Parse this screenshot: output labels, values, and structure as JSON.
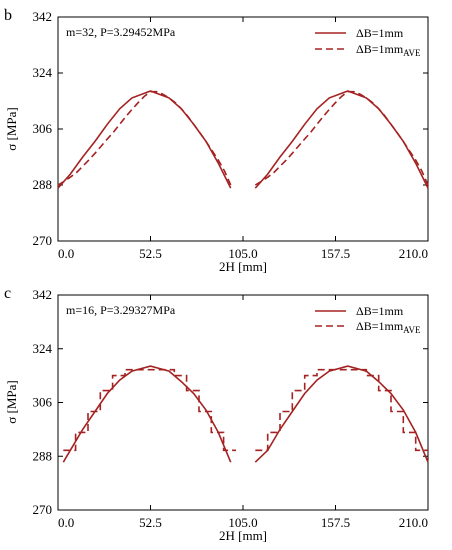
{
  "chart_data": [
    {
      "panel": "b",
      "type": "line",
      "annotation": "m=32, P=3.29452MPa",
      "xlabel": "2H [mm]",
      "ylabel": "σ [MPa]",
      "xlim": [
        0,
        210
      ],
      "ylim": [
        270,
        342
      ],
      "xticks": [
        "0.0",
        "52.5",
        "105.0",
        "157.5",
        "210.0"
      ],
      "yticks": [
        "270",
        "288",
        "306",
        "324",
        "342"
      ],
      "legend_position": "top-right",
      "color": "#a52222",
      "series": [
        {
          "name": "ΔB=1mm",
          "style": "solid",
          "segments": [
            [
              [
                0,
                287
              ],
              [
                7,
                291.5
              ],
              [
                14,
                297
              ],
              [
                21,
                302
              ],
              [
                28,
                307.5
              ],
              [
                35,
                312.5
              ],
              [
                42,
                316
              ],
              [
                52.5,
                318.2
              ],
              [
                63,
                316
              ],
              [
                70,
                312.5
              ],
              [
                77,
                307.5
              ],
              [
                84,
                302
              ],
              [
                91,
                295
              ],
              [
                98,
                287
              ]
            ],
            [
              [
                112,
                287
              ],
              [
                119,
                291.5
              ],
              [
                126,
                297
              ],
              [
                133,
                302
              ],
              [
                140,
                307.5
              ],
              [
                147,
                312.5
              ],
              [
                154,
                316
              ],
              [
                164.5,
                318.2
              ],
              [
                175,
                316
              ],
              [
                182,
                312.5
              ],
              [
                189,
                307.5
              ],
              [
                196,
                302
              ],
              [
                203,
                295
              ],
              [
                210,
                287
              ]
            ]
          ]
        },
        {
          "name": "ΔB=1mm",
          "name_subscript": "AVE",
          "style": "dashed",
          "step": 3.5,
          "segments": [
            [
              [
                0,
                288
              ],
              [
                3.5,
                289.2
              ],
              [
                7,
                290.5
              ],
              [
                10.5,
                292
              ],
              [
                14,
                294
              ],
              [
                17.5,
                296
              ],
              [
                21,
                298.2
              ],
              [
                24.5,
                300.5
              ],
              [
                28,
                302.8
              ],
              [
                31.5,
                305
              ],
              [
                35,
                307.5
              ],
              [
                38.5,
                310
              ],
              [
                42,
                312.3
              ],
              [
                45.5,
                314.5
              ],
              [
                49,
                316.5
              ],
              [
                52.5,
                318
              ],
              [
                56,
                318
              ],
              [
                59.5,
                317.2
              ],
              [
                63,
                316
              ],
              [
                66.5,
                314.5
              ],
              [
                70,
                312.5
              ],
              [
                73.5,
                310.2
              ],
              [
                77,
                307.5
              ],
              [
                80.5,
                304.8
              ],
              [
                84,
                302
              ],
              [
                87.5,
                299
              ],
              [
                91,
                296
              ],
              [
                94.5,
                292.5
              ],
              [
                98,
                288
              ]
            ],
            [
              [
                112,
                288
              ],
              [
                115.5,
                289.2
              ],
              [
                119,
                290.5
              ],
              [
                122.5,
                292
              ],
              [
                126,
                294
              ],
              [
                129.5,
                296
              ],
              [
                133,
                298.2
              ],
              [
                136.5,
                300.5
              ],
              [
                140,
                302.8
              ],
              [
                143.5,
                305
              ],
              [
                147,
                307.5
              ],
              [
                150.5,
                310
              ],
              [
                154,
                312.3
              ],
              [
                157.5,
                314.5
              ],
              [
                161,
                316.5
              ],
              [
                164.5,
                318
              ],
              [
                168,
                318
              ],
              [
                171.5,
                317.2
              ],
              [
                175,
                316
              ],
              [
                178.5,
                314.5
              ],
              [
                182,
                312.5
              ],
              [
                185.5,
                310.2
              ],
              [
                189,
                307.5
              ],
              [
                192.5,
                304.8
              ],
              [
                196,
                302
              ],
              [
                199.5,
                299
              ],
              [
                203,
                296
              ],
              [
                206.5,
                292.5
              ],
              [
                210,
                288
              ]
            ]
          ]
        }
      ]
    },
    {
      "panel": "c",
      "type": "line",
      "annotation": "m=16, P=3.29327MPa",
      "xlabel": "2H [mm]",
      "ylabel": "σ [MPa]",
      "xlim": [
        0,
        210
      ],
      "ylim": [
        270,
        342
      ],
      "xticks": [
        "0.0",
        "52.5",
        "105.0",
        "157.5",
        "210.0"
      ],
      "yticks": [
        "270",
        "288",
        "306",
        "324",
        "342"
      ],
      "legend_position": "top-right",
      "color": "#a52222",
      "series": [
        {
          "name": "ΔB=1mm",
          "style": "solid",
          "segments": [
            [
              [
                3,
                286
              ],
              [
                7,
                290
              ],
              [
                14,
                297
              ],
              [
                21,
                303
              ],
              [
                28,
                309
              ],
              [
                35,
                313.5
              ],
              [
                42,
                316.5
              ],
              [
                52.5,
                318.2
              ],
              [
                63,
                316.5
              ],
              [
                70,
                313
              ],
              [
                77,
                309
              ],
              [
                84,
                303.5
              ],
              [
                91,
                296
              ],
              [
                98,
                286
              ]
            ],
            [
              [
                112,
                286
              ],
              [
                119,
                290
              ],
              [
                126,
                297
              ],
              [
                133,
                303
              ],
              [
                140,
                309
              ],
              [
                147,
                313.5
              ],
              [
                154,
                316.5
              ],
              [
                164.5,
                318.2
              ],
              [
                175,
                316.5
              ],
              [
                182,
                313
              ],
              [
                189,
                309
              ],
              [
                196,
                303.5
              ],
              [
                203,
                296
              ],
              [
                210,
                286
              ]
            ]
          ]
        },
        {
          "name": "ΔB=1mm",
          "name_subscript": "AVE",
          "style": "dashed",
          "step": 7,
          "segments": [
            [
              [
                3,
                290
              ],
              [
                10,
                290
              ],
              [
                10,
                296
              ],
              [
                17,
                296
              ],
              [
                17,
                303
              ],
              [
                24,
                303
              ],
              [
                24,
                310
              ],
              [
                31,
                310
              ],
              [
                31,
                315
              ],
              [
                38,
                315
              ],
              [
                38,
                317
              ],
              [
                66,
                317
              ],
              [
                66,
                315
              ],
              [
                73,
                315
              ],
              [
                73,
                310
              ],
              [
                80,
                310
              ],
              [
                80,
                303
              ],
              [
                87,
                303
              ],
              [
                87,
                296
              ],
              [
                94,
                296
              ],
              [
                94,
                290
              ],
              [
                101,
                290
              ]
            ],
            [
              [
                112,
                290
              ],
              [
                119,
                290
              ],
              [
                119,
                296
              ],
              [
                126,
                296
              ],
              [
                126,
                303
              ],
              [
                133,
                303
              ],
              [
                133,
                310
              ],
              [
                140,
                310
              ],
              [
                140,
                315
              ],
              [
                147,
                315
              ],
              [
                147,
                317
              ],
              [
                175,
                317
              ],
              [
                175,
                315
              ],
              [
                182,
                315
              ],
              [
                182,
                310
              ],
              [
                189,
                310
              ],
              [
                189,
                303
              ],
              [
                196,
                303
              ],
              [
                196,
                296
              ],
              [
                203,
                296
              ],
              [
                203,
                290
              ],
              [
                210,
                290
              ]
            ]
          ]
        }
      ]
    }
  ]
}
